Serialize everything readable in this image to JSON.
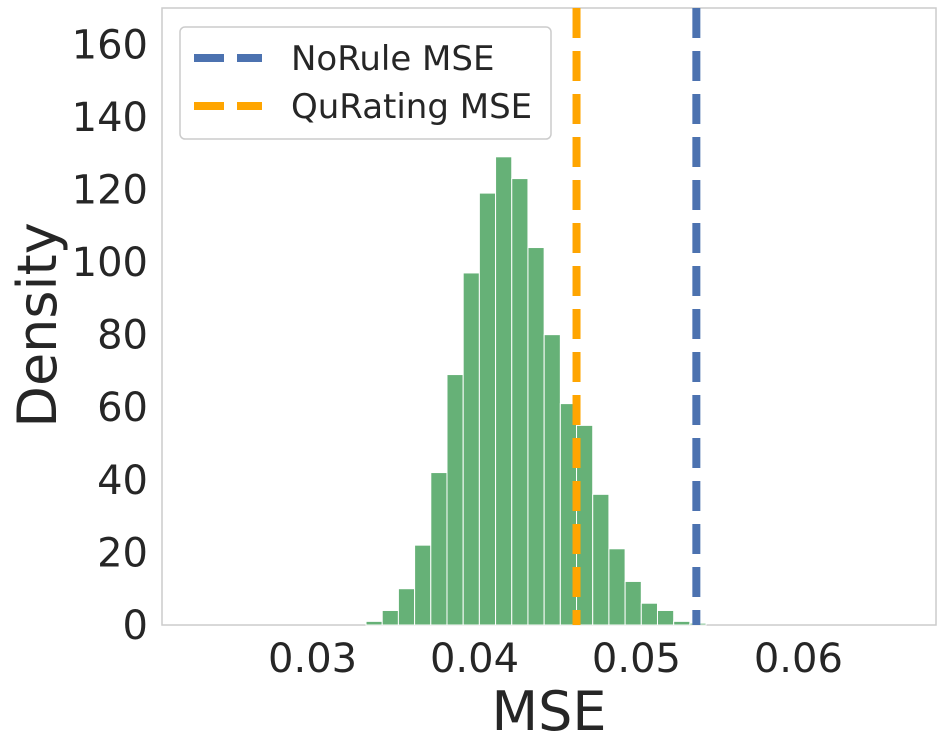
{
  "chart_data": {
    "type": "histogram",
    "xlabel": "MSE",
    "ylabel": "Density",
    "xlim": [
      0.0207,
      0.0685
    ],
    "ylim": [
      0,
      170
    ],
    "xticks": [
      0.03,
      0.04,
      0.05,
      0.06
    ],
    "xtick_labels": [
      "0.03",
      "0.04",
      "0.05",
      "0.06"
    ],
    "yticks": [
      0,
      20,
      40,
      60,
      80,
      100,
      120,
      140,
      160
    ],
    "ytick_labels": [
      "0",
      "20",
      "40",
      "60",
      "80",
      "100",
      "120",
      "140",
      "160"
    ],
    "grid": false,
    "histogram": {
      "color": "#55a868",
      "bins": [
        {
          "x0": 0.0333,
          "x1": 0.0343,
          "density": 1
        },
        {
          "x0": 0.0343,
          "x1": 0.0353,
          "density": 4
        },
        {
          "x0": 0.0353,
          "x1": 0.0363,
          "density": 10
        },
        {
          "x0": 0.0363,
          "x1": 0.0373,
          "density": 22
        },
        {
          "x0": 0.0373,
          "x1": 0.0383,
          "density": 42
        },
        {
          "x0": 0.0383,
          "x1": 0.0393,
          "density": 69
        },
        {
          "x0": 0.0393,
          "x1": 0.0403,
          "density": 97
        },
        {
          "x0": 0.0403,
          "x1": 0.0413,
          "density": 119
        },
        {
          "x0": 0.0413,
          "x1": 0.0423,
          "density": 129
        },
        {
          "x0": 0.0423,
          "x1": 0.0433,
          "density": 123
        },
        {
          "x0": 0.0433,
          "x1": 0.0443,
          "density": 104
        },
        {
          "x0": 0.0443,
          "x1": 0.0453,
          "density": 80
        },
        {
          "x0": 0.0453,
          "x1": 0.0463,
          "density": 61
        },
        {
          "x0": 0.0463,
          "x1": 0.0473,
          "density": 55
        },
        {
          "x0": 0.0473,
          "x1": 0.0483,
          "density": 36
        },
        {
          "x0": 0.0483,
          "x1": 0.0493,
          "density": 21
        },
        {
          "x0": 0.0493,
          "x1": 0.0503,
          "density": 12
        },
        {
          "x0": 0.0503,
          "x1": 0.0513,
          "density": 6
        },
        {
          "x0": 0.0513,
          "x1": 0.0523,
          "density": 4
        },
        {
          "x0": 0.0523,
          "x1": 0.0533,
          "density": 1
        },
        {
          "x0": 0.0533,
          "x1": 0.0543,
          "density": 0.5
        }
      ]
    },
    "vlines": [
      {
        "name": "NoRule MSE",
        "x": 0.0537,
        "color": "#4c72b0",
        "style": "dashed"
      },
      {
        "name": "QuRating MSE",
        "x": 0.0463,
        "color": "#ffa500",
        "style": "dashed"
      }
    ],
    "legend_position": "top-left"
  }
}
